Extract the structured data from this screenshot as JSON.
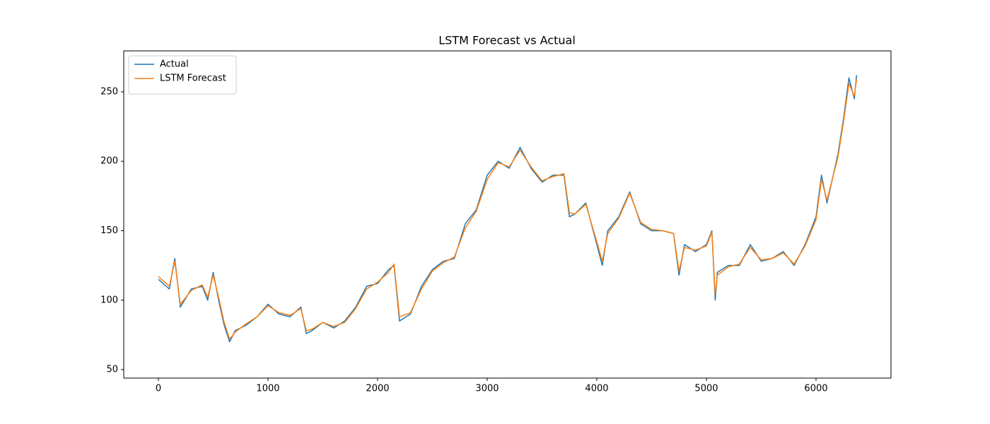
{
  "chart_data": {
    "type": "line",
    "title": "LSTM Forecast vs Actual",
    "x": [
      0,
      100,
      150,
      200,
      300,
      400,
      450,
      500,
      550,
      600,
      650,
      700,
      800,
      900,
      1000,
      1100,
      1200,
      1300,
      1350,
      1400,
      1500,
      1600,
      1700,
      1800,
      1900,
      2000,
      2100,
      2150,
      2200,
      2300,
      2400,
      2500,
      2600,
      2700,
      2800,
      2900,
      3000,
      3100,
      3200,
      3300,
      3400,
      3500,
      3600,
      3700,
      3750,
      3800,
      3900,
      4000,
      4050,
      4100,
      4200,
      4300,
      4400,
      4500,
      4600,
      4700,
      4750,
      4800,
      4900,
      5000,
      5050,
      5080,
      5100,
      5200,
      5300,
      5400,
      5500,
      5600,
      5700,
      5800,
      5900,
      6000,
      6050,
      6100,
      6200,
      6250,
      6300,
      6350,
      6370
    ],
    "series": [
      {
        "name": "Actual",
        "color": "#1f77b4",
        "values": [
          115,
          108,
          130,
          95,
          108,
          110,
          100,
          120,
          100,
          82,
          70,
          78,
          82,
          88,
          97,
          90,
          88,
          95,
          76,
          78,
          84,
          80,
          85,
          95,
          110,
          112,
          122,
          125,
          85,
          90,
          110,
          122,
          128,
          130,
          155,
          165,
          190,
          200,
          195,
          210,
          195,
          185,
          190,
          190,
          160,
          162,
          170,
          140,
          125,
          150,
          160,
          178,
          155,
          150,
          150,
          148,
          118,
          140,
          135,
          140,
          150,
          100,
          120,
          125,
          125,
          140,
          128,
          130,
          135,
          125,
          140,
          160,
          190,
          170,
          205,
          230,
          260,
          245,
          262
        ]
      },
      {
        "name": "LSTM Forecast",
        "color": "#ff7f0e",
        "values": [
          117,
          110,
          128,
          97,
          107,
          111,
          102,
          118,
          102,
          84,
          72,
          77,
          83,
          88,
          96,
          91,
          89,
          94,
          78,
          79,
          84,
          81,
          84,
          94,
          108,
          113,
          120,
          126,
          88,
          91,
          108,
          121,
          127,
          131,
          152,
          164,
          187,
          199,
          196,
          208,
          196,
          186,
          189,
          191,
          163,
          162,
          169,
          142,
          128,
          148,
          159,
          177,
          156,
          151,
          150,
          148,
          121,
          138,
          136,
          139,
          149,
          104,
          118,
          124,
          126,
          138,
          129,
          130,
          134,
          126,
          139,
          158,
          187,
          172,
          203,
          228,
          256,
          247,
          259
        ]
      }
    ],
    "xlim": [
      -316,
      6684
    ],
    "ylim": [
      43.9,
      279.5
    ],
    "xticks": [
      0,
      1000,
      2000,
      3000,
      4000,
      5000,
      6000
    ],
    "yticks": [
      50,
      100,
      150,
      200,
      250
    ],
    "legend": "upper left"
  }
}
